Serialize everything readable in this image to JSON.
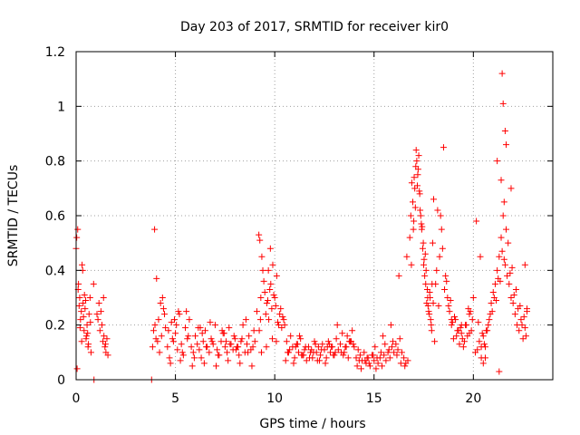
{
  "chart_data": {
    "type": "scatter",
    "title": "Day 203 of 2017, SRMTID for receiver kir0",
    "xlabel": "GPS time / hours",
    "ylabel": "SRMTID / TECUs",
    "xlim": [
      0,
      24
    ],
    "ylim": [
      0,
      1.2
    ],
    "x_ticks": [
      0,
      5,
      10,
      15,
      20
    ],
    "x_tick_labels": [
      "0",
      "5",
      "10",
      "15",
      "20"
    ],
    "y_ticks": [
      0,
      0.2,
      0.4,
      0.6,
      0.8,
      1.0,
      1.2
    ],
    "y_tick_labels": [
      "0",
      "0.2",
      "0.4",
      "0.6",
      "0.8",
      "1",
      "1.2"
    ],
    "grid": true,
    "marker": "+",
    "color": "#ff0000",
    "series": [
      {
        "name": "SRMTID",
        "x": [
          0.0,
          0.03,
          0.08,
          0.12,
          0.18,
          0.22,
          0.26,
          0.3,
          0.35,
          0.4,
          0.45,
          0.5,
          0.55,
          0.6,
          0.65,
          0.7,
          0.75,
          0.1,
          0.2,
          0.33,
          0.42,
          0.52,
          0.62,
          0.72,
          0.15,
          0.37,
          0.58,
          0.48,
          0.28,
          0.05,
          0.9,
          1.1,
          1.2,
          1.25,
          1.3,
          1.35,
          1.4,
          1.45,
          1.5,
          1.55,
          1.6,
          1.15,
          1.38,
          1.48,
          1.05,
          0.88,
          3.8,
          3.85,
          3.9,
          3.95,
          4.05,
          4.1,
          4.15,
          4.2,
          4.3,
          4.4,
          4.5,
          4.6,
          4.7,
          4.8,
          4.9,
          5.0,
          5.1,
          5.2,
          5.3,
          5.4,
          5.5,
          5.6,
          5.7,
          5.8,
          5.9,
          6.0,
          6.1,
          6.2,
          6.3,
          6.4,
          6.5,
          6.6,
          6.7,
          6.8,
          6.9,
          7.0,
          7.1,
          7.2,
          7.3,
          7.4,
          7.5,
          7.6,
          7.7,
          7.8,
          7.9,
          8.0,
          8.1,
          8.2,
          8.3,
          8.4,
          8.5,
          8.6,
          8.7,
          8.8,
          8.9,
          9.0,
          4.25,
          4.45,
          4.65,
          4.85,
          5.05,
          5.35,
          5.65,
          5.95,
          6.25,
          6.55,
          6.85,
          7.15,
          7.45,
          7.75,
          8.05,
          8.35,
          8.65,
          8.95,
          4.35,
          4.95,
          5.55,
          6.15,
          6.75,
          7.35,
          7.95,
          8.55,
          4.75,
          5.25,
          5.85,
          6.45,
          7.05,
          7.65,
          8.25,
          8.85,
          3.97,
          4.02,
          5.15,
          6.35,
          7.55,
          8.15,
          9.1,
          9.2,
          9.25,
          9.3,
          9.35,
          9.4,
          9.5,
          9.6,
          9.7,
          9.8,
          9.9,
          10.0,
          10.1,
          10.2,
          10.3,
          10.4,
          9.22,
          9.28,
          9.45,
          9.55,
          9.65,
          9.75,
          9.85,
          9.95,
          10.05,
          10.15,
          10.25,
          10.35,
          9.33,
          9.58,
          9.88,
          10.08,
          9.78,
          9.68,
          10.5,
          10.6,
          10.7,
          10.8,
          10.9,
          11.0,
          11.1,
          11.2,
          11.3,
          11.4,
          11.5,
          11.6,
          11.7,
          11.8,
          11.9,
          12.0,
          12.1,
          12.2,
          12.3,
          12.4,
          12.5,
          12.6,
          12.7,
          12.8,
          12.9,
          13.0,
          13.1,
          13.2,
          13.3,
          13.4,
          13.5,
          13.6,
          13.7,
          13.8,
          13.9,
          14.0,
          10.55,
          10.75,
          10.95,
          11.15,
          11.35,
          11.55,
          11.75,
          11.95,
          12.15,
          12.35,
          12.55,
          12.75,
          12.95,
          13.15,
          13.35,
          13.55,
          13.75,
          13.95,
          10.65,
          11.05,
          11.45,
          11.85,
          12.25,
          12.65,
          13.05,
          13.45,
          13.85,
          10.45,
          11.25,
          12.05,
          12.85,
          13.65,
          14.1,
          14.2,
          14.3,
          14.4,
          14.5,
          14.6,
          14.7,
          14.8,
          14.9,
          15.0,
          15.1,
          15.2,
          15.3,
          15.4,
          15.5,
          15.6,
          15.7,
          15.8,
          15.9,
          16.0,
          16.1,
          16.2,
          16.3,
          16.4,
          16.5,
          16.6,
          16.7,
          14.15,
          14.35,
          14.55,
          14.75,
          14.95,
          15.15,
          15.35,
          15.55,
          15.75,
          15.95,
          16.15,
          16.35,
          16.55,
          14.25,
          14.65,
          15.05,
          15.45,
          15.85,
          16.25,
          16.65,
          16.8,
          16.85,
          16.9,
          16.95,
          17.0,
          17.05,
          17.1,
          17.15,
          17.2,
          17.25,
          17.3,
          17.35,
          17.4,
          17.45,
          17.5,
          17.55,
          17.6,
          17.65,
          17.7,
          17.75,
          17.8,
          17.85,
          17.9,
          17.95,
          18.0,
          17.02,
          17.12,
          17.22,
          17.32,
          17.42,
          17.52,
          17.62,
          17.72,
          17.82,
          17.92,
          16.88,
          16.98,
          17.08,
          17.18,
          17.28,
          17.38,
          17.48,
          17.58,
          17.68,
          17.78,
          17.88,
          17.98,
          18.1,
          18.2,
          18.3,
          18.4,
          18.5,
          18.6,
          18.7,
          18.8,
          18.9,
          19.0,
          19.1,
          19.2,
          19.3,
          19.4,
          19.5,
          19.6,
          19.7,
          19.8,
          19.9,
          20.0,
          18.15,
          18.35,
          18.55,
          18.75,
          18.95,
          19.15,
          19.35,
          19.55,
          19.75,
          19.95,
          18.25,
          18.45,
          18.65,
          18.85,
          19.05,
          19.25,
          19.45,
          19.65,
          19.85,
          18.05,
          18.9,
          19.4,
          19.8,
          20.1,
          20.2,
          20.3,
          20.4,
          20.5,
          20.6,
          20.7,
          20.8,
          20.9,
          21.0,
          21.1,
          21.2,
          21.3,
          21.4,
          21.5,
          21.6,
          21.7,
          21.8,
          21.9,
          22.0,
          22.1,
          22.2,
          22.3,
          22.4,
          22.5,
          22.6,
          22.7,
          20.15,
          20.35,
          20.55,
          20.75,
          20.95,
          21.15,
          21.35,
          21.55,
          21.75,
          21.95,
          22.15,
          22.35,
          22.55,
          20.25,
          20.45,
          20.65,
          20.85,
          21.05,
          21.25,
          21.45,
          21.65,
          21.85,
          22.05,
          22.25,
          22.45,
          22.65,
          21.45,
          21.5,
          21.6,
          21.65,
          21.2,
          20.6,
          21.3,
          22.6,
          22.7,
          21.4,
          21.55,
          21.9,
          20.4,
          20.5
        ],
        "y": [
          0.48,
          0.52,
          0.55,
          0.35,
          0.3,
          0.22,
          0.25,
          0.42,
          0.28,
          0.18,
          0.26,
          0.15,
          0.2,
          0.12,
          0.24,
          0.3,
          0.1,
          0.33,
          0.19,
          0.4,
          0.31,
          0.16,
          0.13,
          0.21,
          0.27,
          0.23,
          0.17,
          0.29,
          0.14,
          0.04,
          0.0,
          0.22,
          0.18,
          0.25,
          0.2,
          0.14,
          0.16,
          0.12,
          0.1,
          0.15,
          0.09,
          0.28,
          0.3,
          0.13,
          0.24,
          0.35,
          0.0,
          0.12,
          0.18,
          0.55,
          0.37,
          0.14,
          0.22,
          0.1,
          0.16,
          0.26,
          0.19,
          0.12,
          0.08,
          0.21,
          0.14,
          0.17,
          0.11,
          0.24,
          0.13,
          0.09,
          0.19,
          0.15,
          0.22,
          0.12,
          0.1,
          0.16,
          0.13,
          0.11,
          0.08,
          0.14,
          0.18,
          0.12,
          0.1,
          0.15,
          0.13,
          0.2,
          0.11,
          0.09,
          0.14,
          0.17,
          0.12,
          0.1,
          0.19,
          0.13,
          0.11,
          0.15,
          0.12,
          0.09,
          0.14,
          0.2,
          0.1,
          0.13,
          0.16,
          0.11,
          0.12,
          0.14,
          0.28,
          0.24,
          0.18,
          0.15,
          0.2,
          0.1,
          0.16,
          0.08,
          0.19,
          0.12,
          0.14,
          0.09,
          0.17,
          0.13,
          0.11,
          0.15,
          0.1,
          0.18,
          0.3,
          0.22,
          0.25,
          0.19,
          0.21,
          0.18,
          0.16,
          0.22,
          0.06,
          0.07,
          0.05,
          0.06,
          0.05,
          0.07,
          0.06,
          0.05,
          0.2,
          0.15,
          0.25,
          0.17,
          0.14,
          0.12,
          0.25,
          0.53,
          0.51,
          0.3,
          0.45,
          0.4,
          0.32,
          0.28,
          0.22,
          0.35,
          0.42,
          0.3,
          0.38,
          0.2,
          0.26,
          0.23,
          0.18,
          0.22,
          0.36,
          0.24,
          0.29,
          0.33,
          0.26,
          0.31,
          0.27,
          0.21,
          0.24,
          0.19,
          0.1,
          0.12,
          0.15,
          0.14,
          0.48,
          0.4,
          0.2,
          0.14,
          0.1,
          0.16,
          0.12,
          0.08,
          0.13,
          0.1,
          0.15,
          0.09,
          0.11,
          0.07,
          0.12,
          0.1,
          0.08,
          0.14,
          0.1,
          0.12,
          0.09,
          0.13,
          0.11,
          0.08,
          0.14,
          0.1,
          0.12,
          0.09,
          0.15,
          0.11,
          0.13,
          0.17,
          0.1,
          0.12,
          0.08,
          0.14,
          0.18,
          0.12,
          0.07,
          0.11,
          0.06,
          0.13,
          0.09,
          0.12,
          0.08,
          0.1,
          0.07,
          0.11,
          0.06,
          0.13,
          0.09,
          0.2,
          0.1,
          0.12,
          0.14,
          0.13,
          0.1,
          0.12,
          0.09,
          0.11,
          0.07,
          0.12,
          0.1,
          0.09,
          0.14,
          0.22,
          0.16,
          0.13,
          0.12,
          0.16,
          0.08,
          0.11,
          0.09,
          0.07,
          0.1,
          0.06,
          0.08,
          0.05,
          0.09,
          0.07,
          0.04,
          0.06,
          0.08,
          0.05,
          0.09,
          0.07,
          0.1,
          0.08,
          0.12,
          0.1,
          0.13,
          0.11,
          0.15,
          0.1,
          0.08,
          0.06,
          0.07,
          0.05,
          0.04,
          0.07,
          0.06,
          0.09,
          0.08,
          0.1,
          0.13,
          0.11,
          0.14,
          0.09,
          0.06,
          0.05,
          0.07,
          0.08,
          0.12,
          0.16,
          0.2,
          0.38,
          0.45,
          0.52,
          0.6,
          0.72,
          0.65,
          0.58,
          0.7,
          0.78,
          0.8,
          0.75,
          0.82,
          0.68,
          0.6,
          0.55,
          0.48,
          0.42,
          0.38,
          0.35,
          0.28,
          0.3,
          0.25,
          0.32,
          0.22,
          0.18,
          0.5,
          0.66,
          0.74,
          0.84,
          0.77,
          0.62,
          0.56,
          0.44,
          0.4,
          0.27,
          0.3,
          0.35,
          0.42,
          0.55,
          0.63,
          0.71,
          0.69,
          0.57,
          0.5,
          0.46,
          0.33,
          0.24,
          0.2,
          0.28,
          0.35,
          0.62,
          0.45,
          0.55,
          0.85,
          0.38,
          0.3,
          0.25,
          0.2,
          0.15,
          0.22,
          0.18,
          0.13,
          0.17,
          0.12,
          0.2,
          0.16,
          0.24,
          0.18,
          0.3,
          0.4,
          0.6,
          0.33,
          0.27,
          0.21,
          0.16,
          0.19,
          0.14,
          0.26,
          0.22,
          0.27,
          0.48,
          0.36,
          0.29,
          0.23,
          0.18,
          0.15,
          0.2,
          0.25,
          0.14,
          0.22,
          0.2,
          0.17,
          0.1,
          0.11,
          0.14,
          0.08,
          0.16,
          0.12,
          0.18,
          0.22,
          0.28,
          0.32,
          0.35,
          0.4,
          0.45,
          0.52,
          0.6,
          0.42,
          0.38,
          0.35,
          0.3,
          0.28,
          0.24,
          0.2,
          0.18,
          0.22,
          0.15,
          0.19,
          0.26,
          0.58,
          0.45,
          0.13,
          0.2,
          0.25,
          0.29,
          0.36,
          0.44,
          0.5,
          0.41,
          0.33,
          0.27,
          0.23,
          0.21,
          0.17,
          0.18,
          0.24,
          0.3,
          0.37,
          0.47,
          0.55,
          0.39,
          0.31,
          0.26,
          0.2,
          0.16,
          1.12,
          1.01,
          0.91,
          0.86,
          0.8,
          0.08,
          0.03,
          0.42,
          0.25,
          0.73,
          0.65,
          0.7,
          0.12,
          0.06
        ]
      }
    ]
  }
}
